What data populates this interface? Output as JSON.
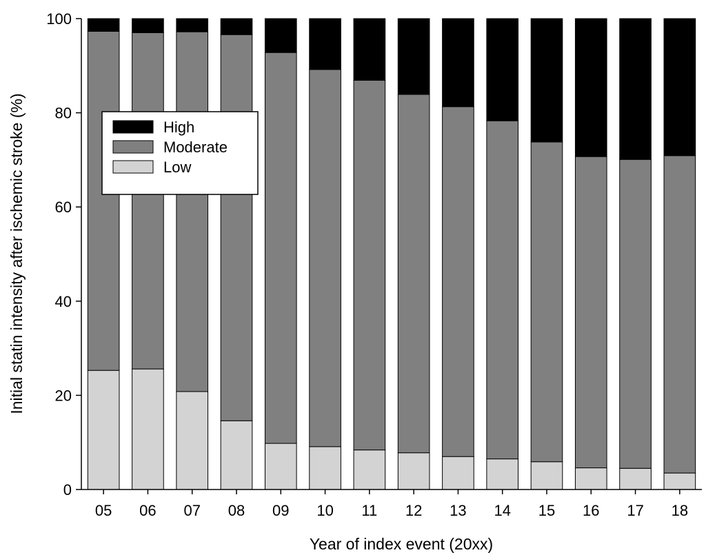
{
  "chart_data": {
    "type": "bar",
    "stacked": true,
    "categories": [
      "05",
      "06",
      "07",
      "08",
      "09",
      "10",
      "11",
      "12",
      "13",
      "14",
      "15",
      "16",
      "17",
      "18"
    ],
    "series": [
      {
        "name": "Low",
        "color": "#d3d3d3",
        "values": [
          25.3,
          25.6,
          20.8,
          14.6,
          9.8,
          9.1,
          8.4,
          7.8,
          7.0,
          6.5,
          5.9,
          4.6,
          4.5,
          3.5
        ]
      },
      {
        "name": "Moderate",
        "color": "#808080",
        "values": [
          72.0,
          71.4,
          76.4,
          82.0,
          83.0,
          80.1,
          78.5,
          76.1,
          74.3,
          71.8,
          67.9,
          66.1,
          65.6,
          67.4
        ]
      },
      {
        "name": "High",
        "color": "#000000",
        "values": [
          2.7,
          3.0,
          2.8,
          3.4,
          7.2,
          10.8,
          13.1,
          16.1,
          18.7,
          21.7,
          26.2,
          29.3,
          29.9,
          29.1
        ]
      }
    ],
    "legend_order": [
      "High",
      "Moderate",
      "Low"
    ],
    "legend_position": "top-left",
    "title": "",
    "xlabel": "Year of index event (20xx)",
    "ylabel": "Initial statin intensity after ischemic stroke (%)",
    "ylim": [
      0,
      100
    ],
    "yticks": [
      "0",
      "20",
      "40",
      "60",
      "80",
      "100"
    ],
    "grid": false
  }
}
